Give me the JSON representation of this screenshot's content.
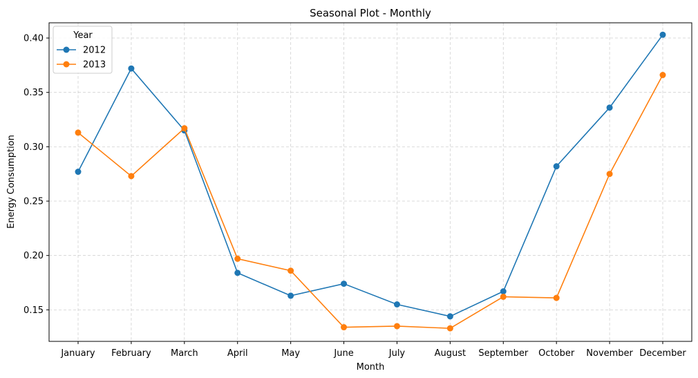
{
  "chart_data": {
    "type": "line",
    "title": "Seasonal Plot - Monthly",
    "xlabel": "Month",
    "ylabel": "Energy Consumption",
    "categories": [
      "January",
      "February",
      "March",
      "April",
      "May",
      "June",
      "July",
      "August",
      "September",
      "October",
      "November",
      "December"
    ],
    "ylim": [
      0.121,
      0.414
    ],
    "yticks": [
      "0.15",
      "0.20",
      "0.25",
      "0.30",
      "0.35",
      "0.40"
    ],
    "grid": true,
    "legend": {
      "title": "Year",
      "position": "top-left"
    },
    "series": [
      {
        "name": "2012",
        "color": "#1f77b4",
        "values": [
          0.277,
          0.372,
          0.315,
          0.184,
          0.163,
          0.174,
          0.155,
          0.144,
          0.167,
          0.282,
          0.336,
          0.403
        ]
      },
      {
        "name": "2013",
        "color": "#ff7f0e",
        "values": [
          0.313,
          0.273,
          0.317,
          0.197,
          0.186,
          0.134,
          0.135,
          0.133,
          0.162,
          0.161,
          0.275,
          0.366
        ]
      }
    ]
  }
}
